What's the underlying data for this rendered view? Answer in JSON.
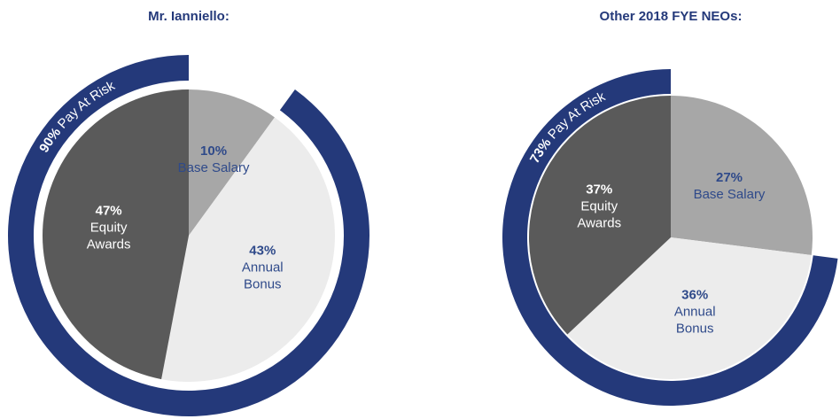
{
  "chart_data": [
    {
      "type": "pie",
      "title": "Mr. Ianniello:",
      "categories": [
        "Base Salary",
        "Annual Bonus",
        "Equity Awards"
      ],
      "values": [
        10,
        43,
        47
      ],
      "value_labels": [
        "10%",
        "43%",
        "47%"
      ],
      "colors": [
        "#a7a7a7",
        "#ececec",
        "#5a5a5a"
      ],
      "label_colors": [
        "#2f4a8a",
        "#2f4a8a",
        "#ffffff"
      ],
      "risk_value": 90,
      "risk_label": "90%",
      "risk_text": "Pay At Risk",
      "risk_color": "#24397a"
    },
    {
      "type": "pie",
      "title": "Other 2018 FYE NEOs:",
      "categories": [
        "Base Salary",
        "Annual Bonus",
        "Equity Awards"
      ],
      "values": [
        27,
        36,
        37
      ],
      "value_labels": [
        "27%",
        "36%",
        "37%"
      ],
      "colors": [
        "#a7a7a7",
        "#ececec",
        "#5a5a5a"
      ],
      "label_colors": [
        "#2f4a8a",
        "#2f4a8a",
        "#ffffff"
      ],
      "risk_value": 73,
      "risk_label": "73%",
      "risk_text": "Pay At Risk",
      "risk_color": "#24397a"
    }
  ]
}
